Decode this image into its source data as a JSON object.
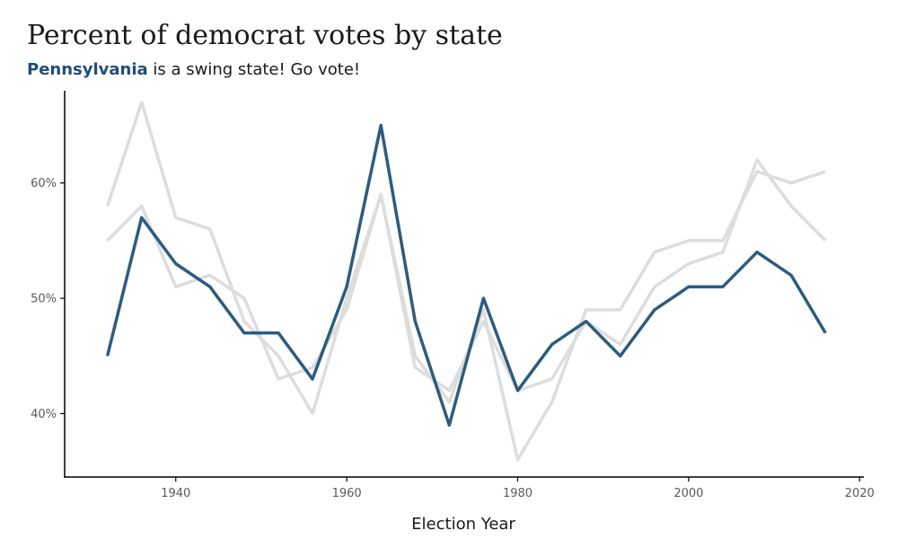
{
  "chart_data": {
    "type": "line",
    "title": "Percent of democrat votes by state",
    "subtitle": {
      "highlight": "Pennsylvania",
      "rest": " is a swing state! Go vote!"
    },
    "xlabel": "Election Year",
    "ylabel": "",
    "xlim": [
      1927,
      2020.5
    ],
    "ylim": [
      34.5,
      68
    ],
    "x_ticks": [
      1940,
      1960,
      1980,
      2000,
      2020
    ],
    "y_ticks": [
      40,
      50,
      60
    ],
    "y_tick_format": "{v}%",
    "grid": false,
    "legend": "none",
    "x": [
      1932,
      1936,
      1940,
      1944,
      1948,
      1952,
      1956,
      1960,
      1964,
      1968,
      1972,
      1976,
      1980,
      1984,
      1988,
      1992,
      1996,
      2000,
      2004,
      2008,
      2012,
      2016
    ],
    "series": [
      {
        "values": [
          58,
          67,
          57,
          56,
          48,
          45,
          40,
          50,
          59,
          45,
          41,
          49,
          36,
          41,
          49,
          49,
          54,
          55,
          55,
          61,
          60,
          61
        ],
        "color": "#dddddd",
        "highlight": false
      },
      {
        "values": [
          55,
          58,
          51,
          52,
          50,
          43,
          44,
          49,
          59,
          44,
          42,
          48,
          42,
          43,
          48,
          46,
          51,
          53,
          54,
          62,
          58,
          55
        ],
        "color": "#dddddd",
        "highlight": false
      },
      {
        "name": "Pennsylvania",
        "values": [
          45,
          57,
          53,
          51,
          47,
          47,
          43,
          51,
          65,
          48,
          39,
          50,
          42,
          46,
          48,
          45,
          49,
          51,
          51,
          54,
          52,
          47
        ],
        "color": "#2c5c80",
        "highlight": true
      }
    ]
  },
  "colors": {
    "highlight_text": "#1f4e79",
    "axis": "#000000",
    "background": "#ffffff"
  }
}
